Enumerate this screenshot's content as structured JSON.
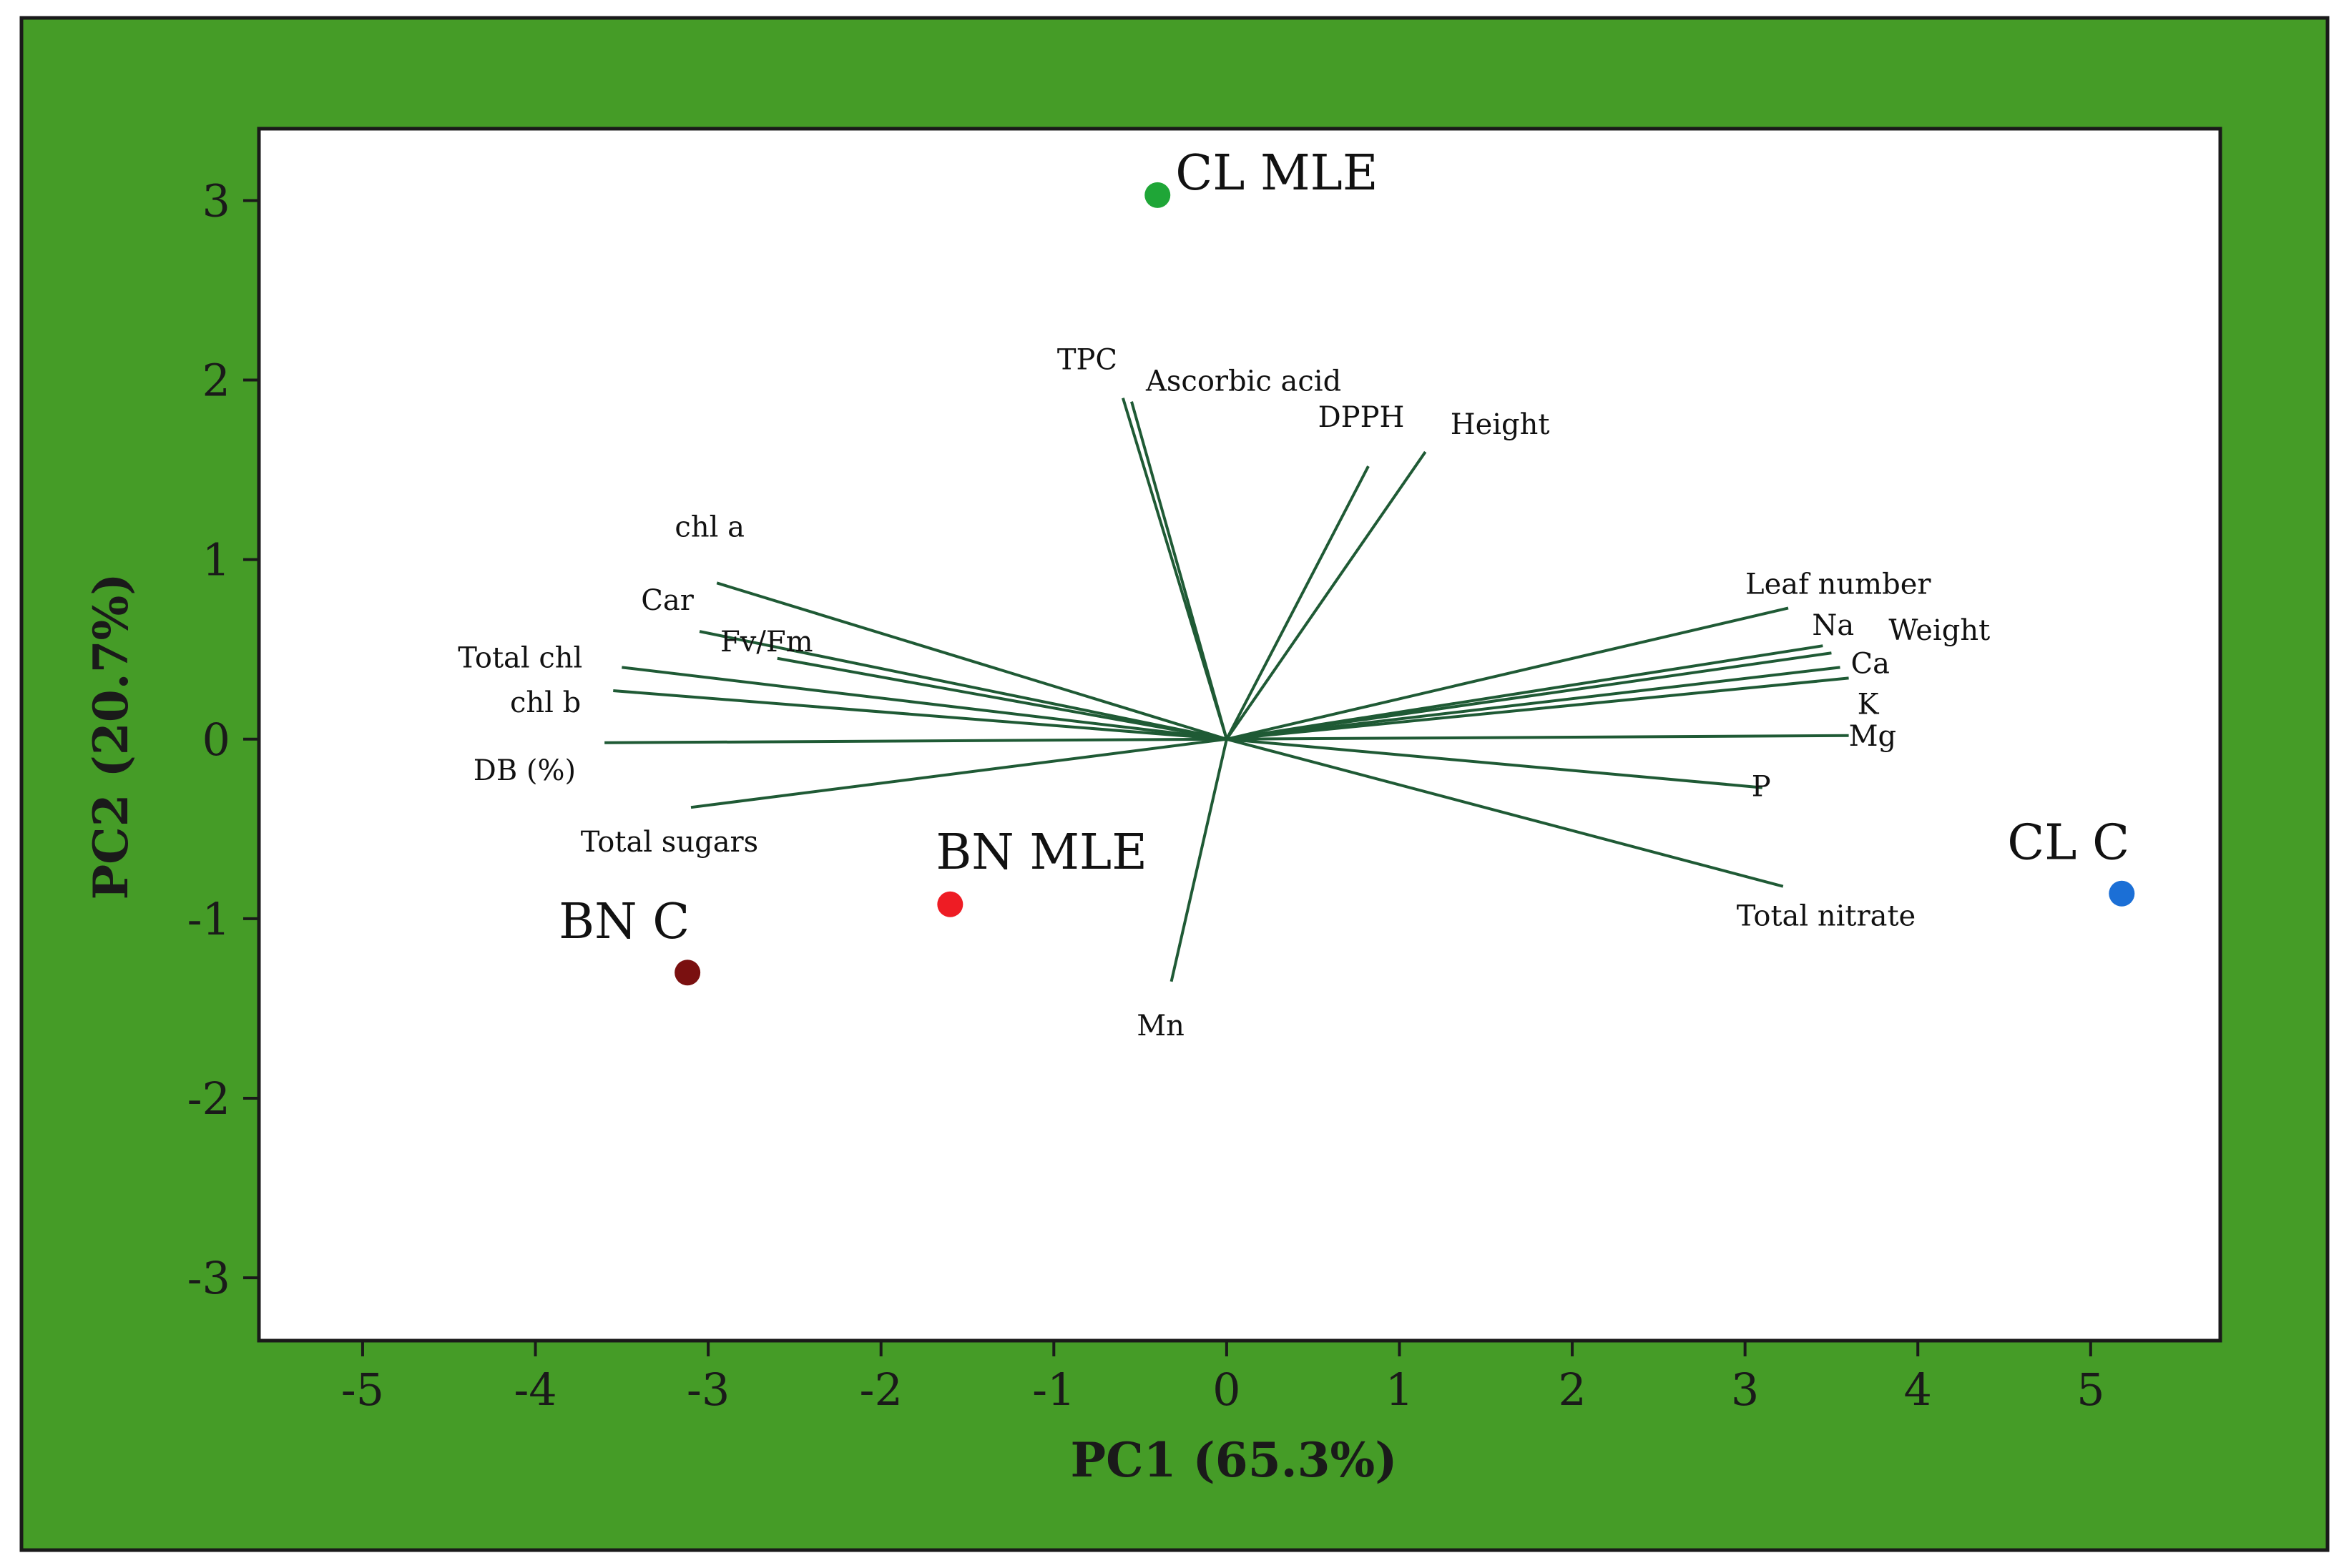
{
  "colors": {
    "outer_background": "#459c27",
    "plot_background": "#ffffff",
    "loading_line": "#1f5a35"
  },
  "chart_data": {
    "type": "scatter",
    "subtype": "pca-biplot",
    "title": "",
    "xlabel": "PC1 (65.3%)",
    "ylabel": "PC2 (20.7%)",
    "xlim": [
      -5.6,
      5.75
    ],
    "ylim": [
      -3.35,
      3.4
    ],
    "xticks": [
      "-5",
      "-4",
      "-3",
      "-2",
      "-1",
      "0",
      "1",
      "2",
      "3",
      "4",
      "5"
    ],
    "yticks": [
      "3",
      "2",
      "1",
      "0",
      "-1",
      "-2",
      "-3"
    ],
    "grid": false,
    "legend": "none",
    "scores": [
      {
        "label": "CL MLE",
        "x": -0.4,
        "y": 3.03,
        "color": "#1fa637"
      },
      {
        "label": "BN MLE",
        "x": -1.6,
        "y": -0.92,
        "color": "#ee1c24"
      },
      {
        "label": "BN C",
        "x": -3.12,
        "y": -1.3,
        "color": "#7a1010"
      },
      {
        "label": "CL C",
        "x": 5.18,
        "y": -0.86,
        "color": "#1b6fd6"
      }
    ],
    "loadings": [
      {
        "label": "TPC",
        "x": -0.6,
        "y": 1.9
      },
      {
        "label": "Ascorbic acid",
        "x": -0.55,
        "y": 1.88
      },
      {
        "label": "DPPH",
        "x": 0.82,
        "y": 1.52
      },
      {
        "label": "Height",
        "x": 1.15,
        "y": 1.6
      },
      {
        "label": "chl a",
        "x": -2.95,
        "y": 0.87
      },
      {
        "label": "Car",
        "x": -3.05,
        "y": 0.6
      },
      {
        "label": "Fv/Fm",
        "x": -2.6,
        "y": 0.45
      },
      {
        "label": "Total chl",
        "x": -3.5,
        "y": 0.4
      },
      {
        "label": "chl b",
        "x": -3.55,
        "y": 0.27
      },
      {
        "label": "DB (%)",
        "x": -3.6,
        "y": -0.02
      },
      {
        "label": "Total sugars",
        "x": -3.1,
        "y": -0.38
      },
      {
        "label": "Mn",
        "x": -0.32,
        "y": -1.35
      },
      {
        "label": "Leaf number",
        "x": 3.25,
        "y": 0.73
      },
      {
        "label": "Na",
        "x": 3.45,
        "y": 0.52
      },
      {
        "label": "Weight",
        "x": 3.5,
        "y": 0.48
      },
      {
        "label": "Ca",
        "x": 3.55,
        "y": 0.4
      },
      {
        "label": "K",
        "x": 3.6,
        "y": 0.34
      },
      {
        "label": "Mg",
        "x": 3.6,
        "y": 0.02
      },
      {
        "label": "P",
        "x": 3.1,
        "y": -0.27
      },
      {
        "label": "Total nitrate",
        "x": 3.22,
        "y": -0.82
      }
    ]
  }
}
